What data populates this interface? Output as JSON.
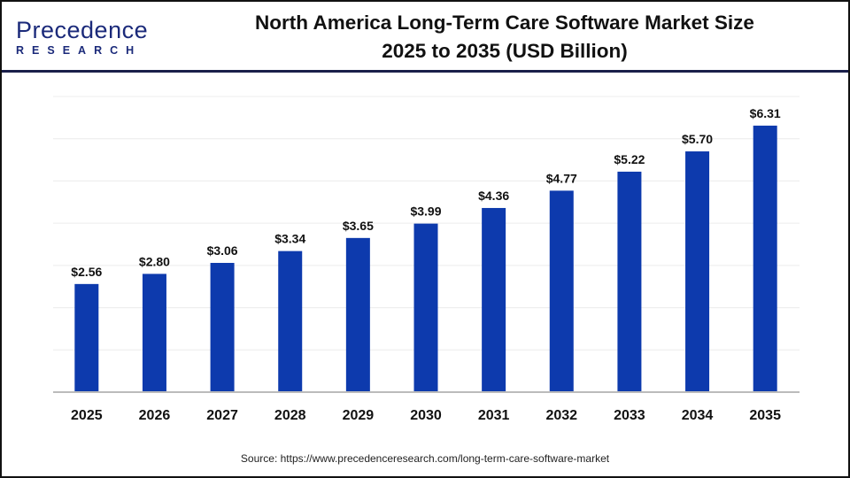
{
  "logo": {
    "line1": "Precedence",
    "line2": "RESEARCH"
  },
  "title_line1": "North America Long-Term Care Software Market Size",
  "title_line2": "2025 to 2035 (USD Billion)",
  "source": "Source: https://www.precedenceresearch.com/long-term-care-software-market",
  "chart_data": {
    "type": "bar",
    "categories": [
      "2025",
      "2026",
      "2027",
      "2028",
      "2029",
      "2030",
      "2031",
      "2032",
      "2033",
      "2034",
      "2035"
    ],
    "values": [
      2.56,
      2.8,
      3.06,
      3.34,
      3.65,
      3.99,
      4.36,
      4.77,
      5.22,
      5.7,
      6.31
    ],
    "labels": [
      "$2.56",
      "$2.80",
      "$3.06",
      "$3.34",
      "$3.65",
      "$3.99",
      "$4.36",
      "$4.77",
      "$5.22",
      "$5.70",
      "$6.31"
    ],
    "ylim": [
      0,
      7
    ],
    "grid": true,
    "bar_color": "#0d3aad",
    "title": "North America Long-Term Care Software Market Size 2025 to 2035 (USD Billion)"
  }
}
